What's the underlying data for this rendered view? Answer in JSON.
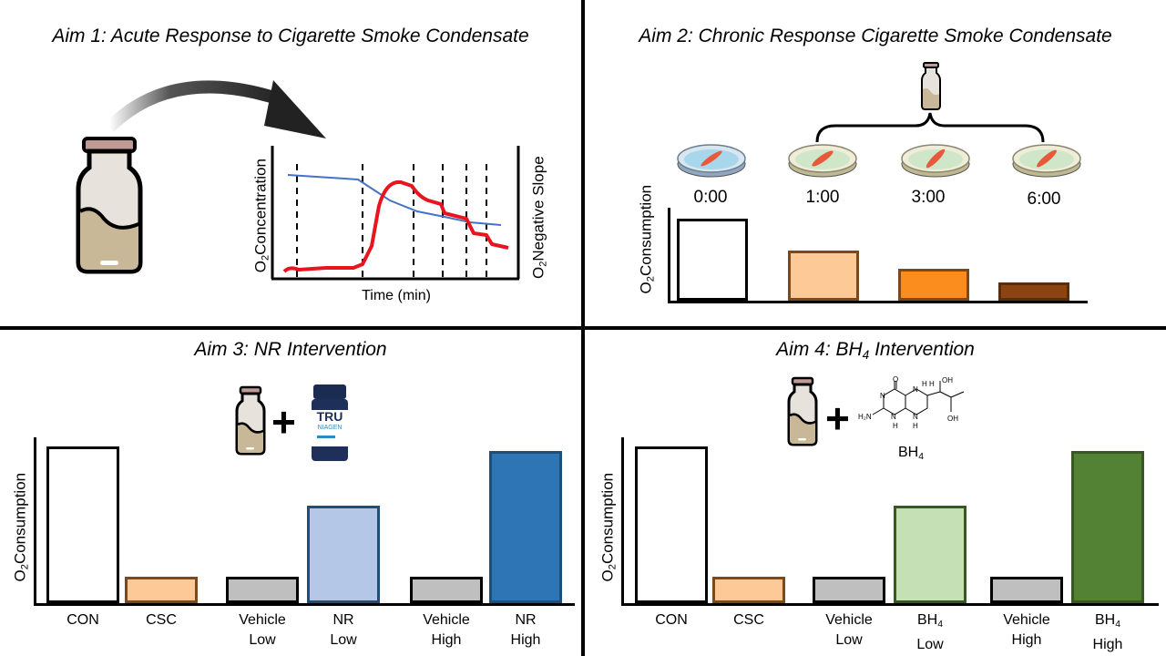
{
  "aims": {
    "aim1": {
      "title": "Aim 1: Acute Response to Cigarette Smoke Condensate",
      "x_label": "Time (min)",
      "y_left_label_pre": "O",
      "y_left_label_sub": "2",
      "y_left_label_post": "Concentration",
      "y_right_label_pre": "O",
      "y_right_label_sub": "2",
      "y_right_label_post": "Negative Slope"
    },
    "aim2": {
      "title": "Aim 2: Chronic Response Cigarette Smoke Condensate",
      "y_label_pre": "O",
      "y_label_sub": "2",
      "y_label_post": "Consumption",
      "times": [
        "0:00",
        "1:00",
        "3:00",
        "6:00"
      ]
    },
    "aim3": {
      "title": "Aim 3: NR Intervention",
      "y_label_pre": "O",
      "y_label_sub": "2",
      "y_label_post": "Consumption",
      "supplement_brand": "TRU",
      "supplement_name": "NIAGEN"
    },
    "aim4": {
      "title_pre": "Aim 4: BH",
      "title_sub": "4",
      "title_post": " Intervention",
      "y_label_pre": "O",
      "y_label_sub": "2",
      "y_label_post": "Consumption",
      "molecule_label_pre": "BH",
      "molecule_label_sub": "4",
      "molecule_atoms": {
        "o": "O",
        "oh1": "OH",
        "oh2": "OH",
        "h2n": "H₂N",
        "n1": "N",
        "n2": "N",
        "n3": "N",
        "n4": "N",
        "h1": "H",
        "h2": "H",
        "h3": "H",
        "h4": "H",
        "hn": "HN"
      }
    }
  },
  "chart_data": [
    {
      "type": "bar",
      "panel": "aim2",
      "categories": [
        "0:00",
        "1:00",
        "3:00",
        "6:00"
      ],
      "values": [
        0.9,
        0.55,
        0.35,
        0.2
      ],
      "colors": [
        "#ffffff",
        "#fcc997",
        "#fb8c1e",
        "#8b4513"
      ],
      "borders": [
        "#000000",
        "#7a4a1e",
        "#7a4a1e",
        "#5a2d0c"
      ]
    },
    {
      "type": "bar",
      "panel": "aim3",
      "categories": [
        "CON",
        "CSC",
        "Vehicle Low",
        "NR Low",
        "Vehicle High",
        "NR High"
      ],
      "label_lines": [
        [
          "CON"
        ],
        [
          "CSC"
        ],
        [
          "Vehicle",
          "Low"
        ],
        [
          "NR",
          "Low"
        ],
        [
          "Vehicle",
          "High"
        ],
        [
          "NR",
          "High"
        ]
      ],
      "values": [
        1.0,
        0.17,
        0.17,
        0.62,
        0.17,
        0.97
      ],
      "colors": [
        "#ffffff",
        "#fcc997",
        "#bfbfbf",
        "#b4c7e7",
        "#bfbfbf",
        "#2e75b6"
      ],
      "borders": [
        "#000000",
        "#7a4a1e",
        "#000000",
        "#1f4e79",
        "#000000",
        "#1f4e79"
      ]
    },
    {
      "type": "bar",
      "panel": "aim4",
      "categories": [
        "CON",
        "CSC",
        "Vehicle Low",
        "BH4 Low",
        "Vehicle High",
        "BH4 High"
      ],
      "label_lines": [
        [
          "CON"
        ],
        [
          "CSC"
        ],
        [
          "Vehicle",
          "Low"
        ],
        [
          "BH|4",
          "Low"
        ],
        [
          "Vehicle",
          "High"
        ],
        [
          "BH|4",
          "High"
        ]
      ],
      "values": [
        1.0,
        0.17,
        0.17,
        0.62,
        0.17,
        0.97
      ],
      "colors": [
        "#ffffff",
        "#fcc997",
        "#bfbfbf",
        "#c5e0b4",
        "#bfbfbf",
        "#548235"
      ],
      "borders": [
        "#000000",
        "#7a4a1e",
        "#000000",
        "#385723",
        "#000000",
        "#385723"
      ]
    }
  ]
}
